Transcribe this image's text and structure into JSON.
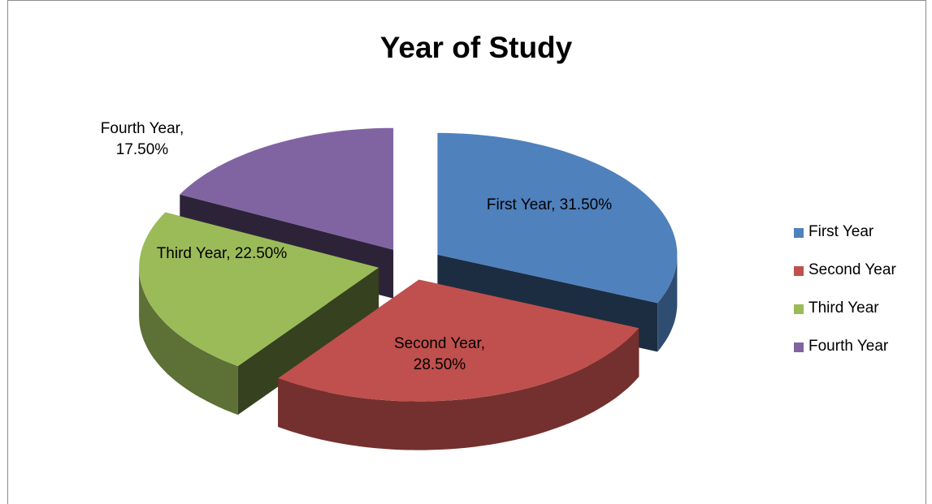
{
  "chart_data": {
    "type": "pie",
    "title": "Year of Study",
    "categories": [
      "First Year",
      "Second Year",
      "Third Year",
      "Fourth Year"
    ],
    "values": [
      31.5,
      28.5,
      22.5,
      17.5
    ],
    "value_labels": [
      "First Year, 31.50%",
      "Second Year, 28.50%",
      "Third Year, 22.50%",
      "Fourth Year, 17.50%"
    ],
    "colors": [
      "#4f81bd",
      "#c0504d",
      "#9bbb59",
      "#8064a2"
    ],
    "legend": "right"
  }
}
